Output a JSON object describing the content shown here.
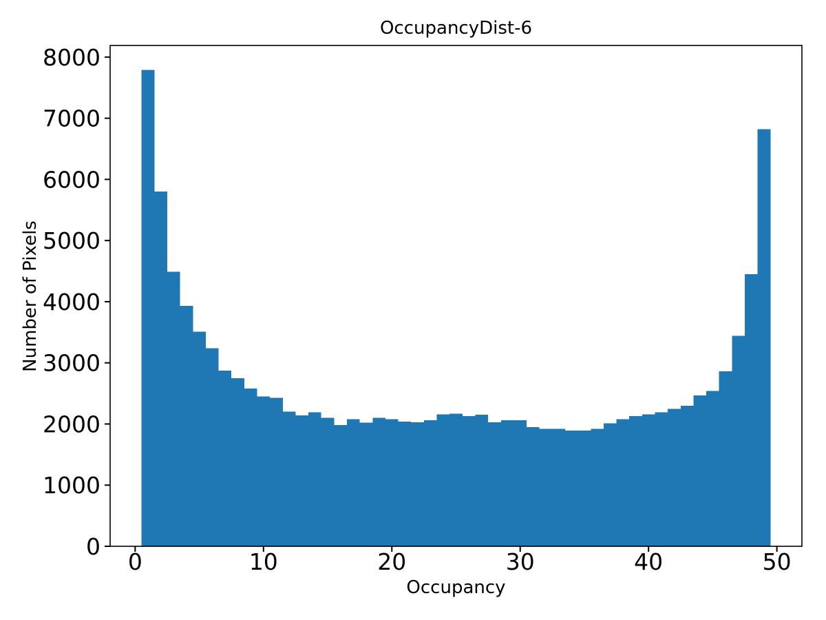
{
  "title": "OccupancyDist-6",
  "chart_data": {
    "type": "bar",
    "subtype": "histogram",
    "title": "OccupancyDist-6",
    "xlabel": "Occupancy",
    "ylabel": "Number of Pixels",
    "bar_color": "#1f77b4",
    "axis_color": "#000000",
    "background_color": "#ffffff",
    "grid": false,
    "legend": null,
    "bin_start": 0.5,
    "bin_width": 1,
    "bin_centers": [
      1,
      2,
      3,
      4,
      5,
      6,
      7,
      8,
      9,
      10,
      11,
      12,
      13,
      14,
      15,
      16,
      17,
      18,
      19,
      20,
      21,
      22,
      23,
      24,
      25,
      26,
      27,
      28,
      29,
      30,
      31,
      32,
      33,
      34,
      35,
      36,
      37,
      38,
      39,
      40,
      41,
      42,
      43,
      44,
      45,
      46,
      47,
      48,
      49
    ],
    "values": [
      7790,
      5800,
      4490,
      3930,
      3510,
      3240,
      2870,
      2750,
      2580,
      2450,
      2430,
      2200,
      2140,
      2190,
      2100,
      1980,
      2080,
      2020,
      2100,
      2080,
      2040,
      2030,
      2060,
      2160,
      2170,
      2130,
      2150,
      2030,
      2060,
      2060,
      1950,
      1920,
      1920,
      1890,
      1890,
      1920,
      2010,
      2080,
      2130,
      2160,
      2190,
      2250,
      2300,
      2470,
      2540,
      2860,
      3440,
      4450,
      6820
    ],
    "x_ticks": [
      0,
      10,
      20,
      30,
      40,
      50
    ],
    "y_ticks": [
      0,
      1000,
      2000,
      3000,
      4000,
      5000,
      6000,
      7000,
      8000
    ],
    "xlim": [
      -1.95,
      51.95
    ],
    "ylim": [
      0,
      8190
    ]
  }
}
